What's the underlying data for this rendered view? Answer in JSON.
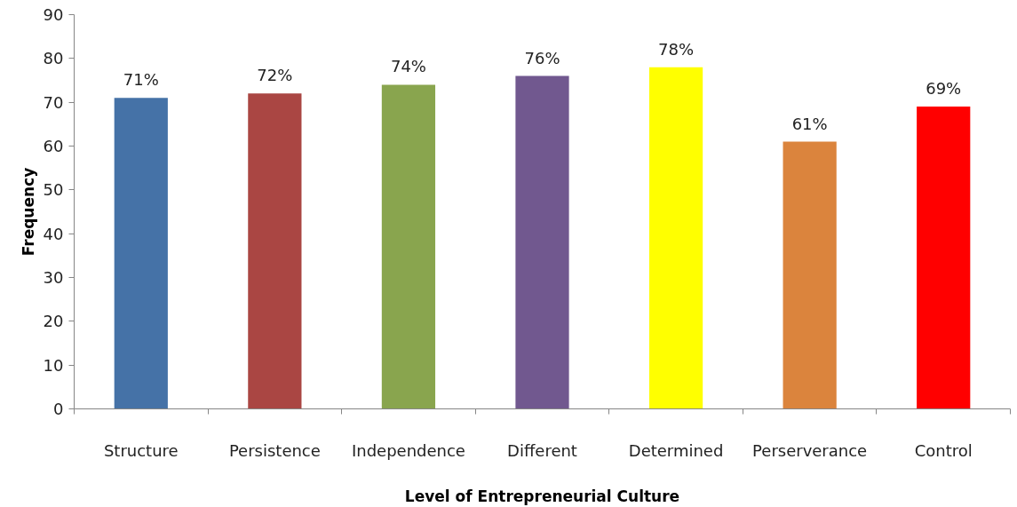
{
  "chart_data": {
    "type": "bar",
    "xlabel": "Level of Entrepreneurial Culture",
    "ylabel": "Frequency",
    "categories": [
      "Structure",
      "Persistence",
      "Independence",
      "Different",
      "Determined",
      "Perserverance",
      "Control"
    ],
    "values": [
      71,
      72,
      74,
      76,
      78,
      61,
      69
    ],
    "colors": [
      "#4572a7",
      "#aa4643",
      "#89a54e",
      "#71588f",
      "#ffff00",
      "#db843d",
      "#ff0000"
    ],
    "value_labels": [
      "71%",
      "72%",
      "74%",
      "76%",
      "78%",
      "61%",
      "69%"
    ],
    "ylim": [
      0,
      90
    ],
    "yticks": [
      0,
      10,
      20,
      30,
      40,
      50,
      60,
      70,
      80,
      90
    ]
  }
}
